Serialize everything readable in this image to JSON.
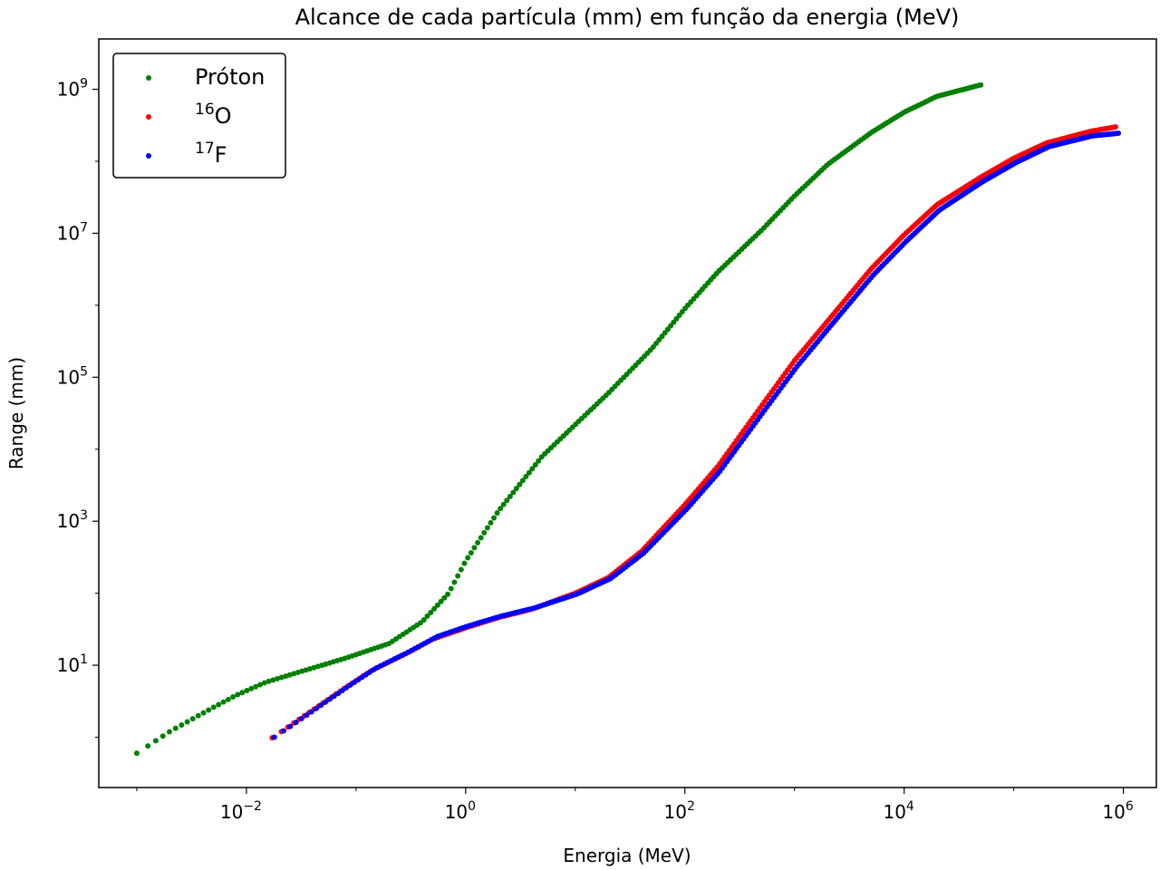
{
  "chart_data": {
    "type": "scatter",
    "title": "Alcance de cada partícula (mm) em função da energia (MeV)",
    "xlabel": "Energia (MeV)",
    "ylabel": "Range (mm)",
    "xscale": "log",
    "yscale": "log",
    "xlim": [
      0.00045,
      2000000
    ],
    "ylim": [
      0.2,
      5000000000
    ],
    "grid": false,
    "legend_position": "top-left",
    "x_ticks": [
      {
        "value": 0.01,
        "base": "10",
        "exp": "−2"
      },
      {
        "value": 1,
        "base": "10",
        "exp": "0"
      },
      {
        "value": 100,
        "base": "10",
        "exp": "2"
      },
      {
        "value": 10000,
        "base": "10",
        "exp": "4"
      },
      {
        "value": 1000000,
        "base": "10",
        "exp": "6"
      }
    ],
    "y_ticks": [
      {
        "value": 10,
        "base": "10",
        "exp": "1"
      },
      {
        "value": 1000,
        "base": "10",
        "exp": "3"
      },
      {
        "value": 100000,
        "base": "10",
        "exp": "5"
      },
      {
        "value": 10000000,
        "base": "10",
        "exp": "7"
      },
      {
        "value": 1000000000,
        "base": "10",
        "exp": "9"
      }
    ],
    "series": [
      {
        "name": "Próton",
        "legend_sup": "",
        "legend_text": "Próton",
        "color": "#008000",
        "x_min": 0.001,
        "x_max": 50000,
        "n_points": 260,
        "key_points": [
          [
            0.001,
            0.6
          ],
          [
            0.002,
            1.2
          ],
          [
            0.005,
            2.6
          ],
          [
            0.008,
            3.8
          ],
          [
            0.015,
            5.8
          ],
          [
            0.03,
            8.0
          ],
          [
            0.08,
            12.5
          ],
          [
            0.2,
            20
          ],
          [
            0.4,
            40
          ],
          [
            0.7,
            100
          ],
          [
            1.0,
            280
          ],
          [
            2.0,
            1400
          ],
          [
            5.0,
            8000
          ],
          [
            10.0,
            22000
          ],
          [
            20.0,
            60000
          ],
          [
            50.0,
            250000
          ],
          [
            100.0,
            900000
          ],
          [
            200.0,
            2900000
          ],
          [
            500.0,
            11000000
          ],
          [
            1000.0,
            33000000
          ],
          [
            2000.0,
            90000000
          ],
          [
            5000.0,
            250000000
          ],
          [
            10000.0,
            480000000
          ],
          [
            20000.0,
            800000000
          ],
          [
            50000.0,
            1150000000
          ]
        ]
      },
      {
        "name": "16O",
        "legend_sup": "16",
        "legend_text": "O",
        "color": "#ff0000",
        "x_min": 0.0172,
        "x_max": 850000,
        "n_points": 330,
        "key_points": [
          [
            0.0172,
            0.98
          ],
          [
            0.034,
            2.0
          ],
          [
            0.085,
            5.2
          ],
          [
            0.14,
            8.5
          ],
          [
            0.3,
            15
          ],
          [
            0.5,
            23
          ],
          [
            1.0,
            33
          ],
          [
            2.0,
            46
          ],
          [
            4.0,
            60
          ],
          [
            10.0,
            100
          ],
          [
            20.0,
            165
          ],
          [
            40.0,
            380
          ],
          [
            100.0,
            1700
          ],
          [
            200.0,
            5800
          ],
          [
            500.0,
            40000
          ],
          [
            1000.0,
            170000
          ],
          [
            2000.0,
            600000
          ],
          [
            5000.0,
            3200000
          ],
          [
            10000.0,
            9500000
          ],
          [
            20000.0,
            25000000
          ],
          [
            50000.0,
            60000000
          ],
          [
            100000.0,
            110000000
          ],
          [
            200000.0,
            180000000
          ],
          [
            500000.0,
            260000000
          ],
          [
            850000.0,
            300000000
          ]
        ]
      },
      {
        "name": "17F",
        "legend_sup": "17",
        "legend_text": "F",
        "color": "#0000ff",
        "x_min": 0.018,
        "x_max": 900000,
        "n_points": 330,
        "key_points": [
          [
            0.018,
            1.0
          ],
          [
            0.035,
            2.0
          ],
          [
            0.09,
            5.4
          ],
          [
            0.15,
            9.0
          ],
          [
            0.32,
            16
          ],
          [
            0.55,
            25
          ],
          [
            1.05,
            35
          ],
          [
            2.1,
            48
          ],
          [
            4.2,
            62
          ],
          [
            10.5,
            98
          ],
          [
            21.0,
            160
          ],
          [
            42.0,
            360
          ],
          [
            105.0,
            1500
          ],
          [
            210.0,
            5000
          ],
          [
            520.0,
            33000
          ],
          [
            1050.0,
            140000
          ],
          [
            2100.0,
            500000
          ],
          [
            5200.0,
            2600000
          ],
          [
            10500.0,
            7800000
          ],
          [
            21000.0,
            21000000
          ],
          [
            52000.0,
            52000000
          ],
          [
            105000.0,
            96000000
          ],
          [
            210000.0,
            160000000
          ],
          [
            520000.0,
            225000000
          ],
          [
            900000.0,
            245000000
          ]
        ]
      }
    ]
  }
}
